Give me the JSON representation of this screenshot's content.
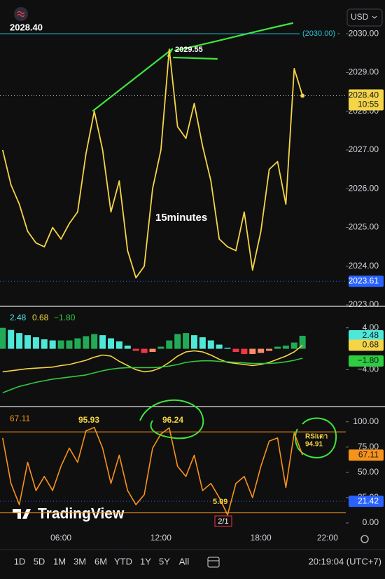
{
  "header": {
    "currency": "USD"
  },
  "chart_data": [
    {
      "type": "line",
      "title": "15minutes",
      "x": [
        2.5,
        3,
        3.5,
        4,
        4.5,
        5,
        5.5,
        6,
        6.5,
        7,
        7.5,
        8,
        8.5,
        9,
        9.5,
        10,
        10.5,
        11,
        11.5,
        12,
        12.5,
        13,
        13.5,
        14,
        14.5,
        15,
        15.5,
        16,
        16.5,
        17,
        17.5,
        18,
        18.5,
        19,
        19.5,
        20,
        20.5
      ],
      "xlim": [
        2.34,
        22.93
      ],
      "xticks": [
        {
          "value": 6,
          "label": "06:00"
        },
        {
          "value": 12,
          "label": "12:00"
        },
        {
          "value": 18,
          "label": "18:00"
        },
        {
          "value": 22,
          "label": "22:00"
        }
      ],
      "series": [
        {
          "color": "#f5d547",
          "values": [
            2027.0,
            2026.1,
            2025.6,
            2024.9,
            2024.6,
            2024.5,
            2025.0,
            2024.7,
            2025.1,
            2025.4,
            2026.9,
            2028.0,
            2027.0,
            2025.4,
            2026.2,
            2024.4,
            2023.7,
            2024.0,
            2026.0,
            2027.0,
            2029.6,
            2027.6,
            2027.3,
            2028.2,
            2027.1,
            2026.2,
            2024.7,
            2024.5,
            2024.4,
            2025.4,
            2023.9,
            2024.9,
            2026.5,
            2026.7,
            2025.6,
            2029.1,
            2028.4
          ]
        }
      ],
      "ylim": [
        2023,
        2030.69
      ],
      "yticks": [
        {
          "value": 2023,
          "label": "2023.00"
        },
        {
          "value": 2024,
          "label": "2024.00"
        },
        {
          "value": 2025,
          "label": "2025.00"
        },
        {
          "value": 2026,
          "label": "2026.00"
        },
        {
          "value": 2027,
          "label": "2027.00"
        },
        {
          "value": 2028,
          "label": "2028.00"
        },
        {
          "value": 2029,
          "label": "2029.00"
        },
        {
          "value": 2030,
          "label": "2030.00"
        }
      ],
      "last": {
        "value": 2028.4,
        "label": "2028.40",
        "countdown": "10:55"
      },
      "alert": {
        "value": 2030,
        "label": "(2030.00) -",
        "color": "#26c6da"
      },
      "low": {
        "value": 2023.61,
        "label": "2023.61",
        "color": "#2962ff"
      },
      "annotations": [
        {
          "text": "2029.55"
        }
      ]
    },
    {
      "type": "macd",
      "histogram": {
        "values": [
          4.0,
          3.6,
          3.0,
          2.6,
          2.2,
          1.8,
          1.6,
          1.6,
          1.6,
          2.0,
          2.4,
          2.8,
          2.6,
          2.0,
          1.4,
          0.6,
          -0.4,
          -0.8,
          -0.6,
          0.4,
          1.6,
          2.8,
          3.0,
          2.6,
          2.2,
          1.6,
          0.8,
          0.2,
          -0.6,
          -1.0,
          -1.0,
          -0.8,
          -0.4,
          0.4,
          0.6,
          1.2,
          2.48
        ],
        "colors": {
          "pos_up": "#22ab56",
          "pos_down": "#4de8d8",
          "neg_up": "#ff8a65",
          "neg_down": "#f23645"
        },
        "color": "#4de8d8",
        "last_label": "2.48"
      },
      "series": [
        {
          "color": "#f5d547",
          "values": [
            -4.4,
            -4.2,
            -4.0,
            -3.8,
            -3.7,
            -3.6,
            -3.5,
            -3.2,
            -3.0,
            -2.6,
            -2.2,
            -1.6,
            -1.2,
            -1.4,
            -2.4,
            -3.2,
            -4.0,
            -4.4,
            -4.2,
            -3.6,
            -2.6,
            -1.4,
            -0.6,
            -0.4,
            -0.6,
            -1.2,
            -2.0,
            -2.6,
            -2.8,
            -3.0,
            -3.2,
            -3.0,
            -2.6,
            -2.0,
            -1.4,
            -0.6,
            0.68
          ],
          "last_label": "0.68"
        },
        {
          "color": "#2ecc40",
          "values": [
            -8.4,
            -7.8,
            -7.2,
            -6.8,
            -6.4,
            -6.1,
            -5.8,
            -5.6,
            -5.4,
            -5.2,
            -5.0,
            -4.6,
            -4.2,
            -3.9,
            -3.7,
            -3.6,
            -3.6,
            -3.6,
            -3.6,
            -3.5,
            -3.3,
            -3.0,
            -2.6,
            -2.4,
            -2.3,
            -2.3,
            -2.4,
            -2.5,
            -2.6,
            -2.7,
            -2.8,
            -2.8,
            -2.8,
            -2.7,
            -2.5,
            -2.2,
            -1.8
          ],
          "last_label": "−1.80"
        }
      ],
      "ylim": [
        -10.5,
        6.5
      ],
      "yticks": [
        {
          "value": 4,
          "label": "4.00"
        },
        {
          "value": -4,
          "label": "−4.00"
        }
      ]
    },
    {
      "type": "line",
      "series": [
        {
          "color": "#f7931a",
          "values": [
            84,
            39,
            18,
            60,
            32,
            46,
            32,
            56,
            74,
            60,
            91,
            94.5,
            74,
            39,
            67,
            32,
            18,
            28,
            74,
            88,
            94,
            56,
            46,
            67,
            32,
            39,
            25,
            8,
            39,
            46,
            25,
            56,
            81,
            84,
            35,
            89,
            67.11
          ],
          "last_label": "67.11"
        }
      ],
      "ylim": [
        -9.7,
        113
      ],
      "yticks": [
        {
          "value": 100,
          "label": "100.00"
        },
        {
          "value": 75,
          "label": "75.00"
        },
        {
          "value": 50,
          "label": "50.00"
        },
        {
          "value": 25,
          "label": "25.00"
        },
        {
          "value": 0,
          "label": "0.00"
        }
      ],
      "bands": [
        90,
        10
      ],
      "band_color": "#f7931a",
      "level": {
        "value": 21.42,
        "label": "21.42",
        "color": "#2962ff"
      },
      "annotations": [
        {
          "text": "95.93"
        },
        {
          "text": "96.24"
        },
        {
          "text": "5.09"
        },
        {
          "text": "RSIเดา"
        },
        {
          "text": "94.91"
        }
      ]
    }
  ],
  "footer": {
    "logo": "TradingView",
    "date_badge": "2/1",
    "ranges": [
      "1D",
      "5D",
      "1M",
      "3M",
      "6M",
      "YTD",
      "1Y",
      "5Y",
      "All"
    ],
    "clock": "20:19:04 (UTC+7)"
  }
}
